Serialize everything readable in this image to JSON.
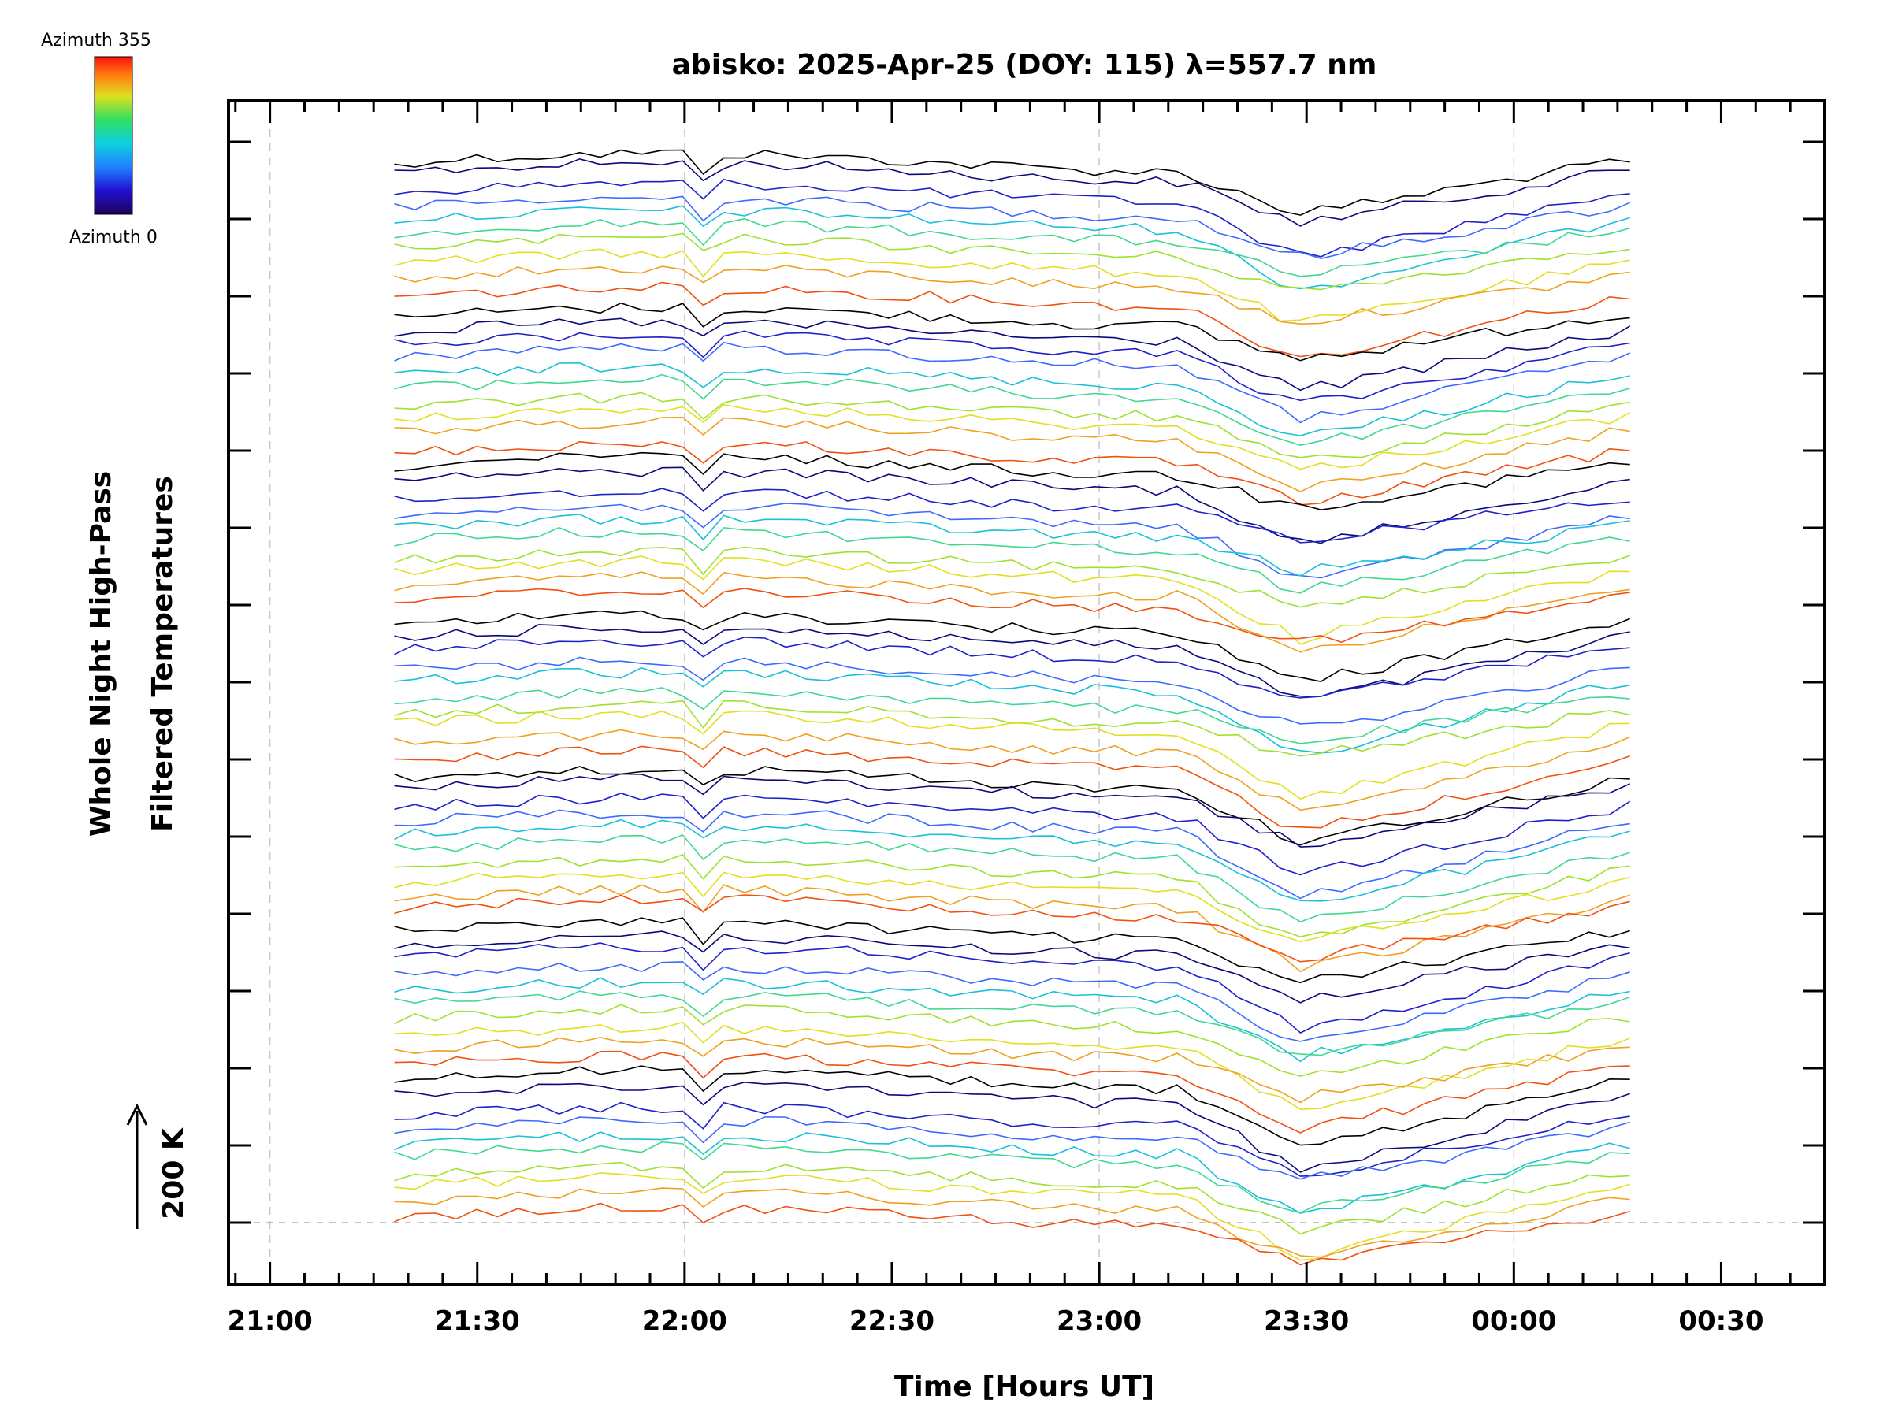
{
  "chart_data": {
    "type": "line",
    "title": "abisko: 2025-Apr-25 (DOY: 115) λ=557.7 nm",
    "xlabel": "Time [Hours UT]",
    "ylabel_line1": "Whole Night High-Pass",
    "ylabel_line2": "Filtered Temperatures",
    "scale_label": "200 K",
    "x_unit": "hours UT since 21:00",
    "xlim": [
      -0.1,
      3.75
    ],
    "x_tick_labels": [
      "21:00",
      "21:30",
      "22:00",
      "22:30",
      "23:00",
      "23:30",
      "00:00",
      "00:30"
    ],
    "x_tick_values": [
      0.0,
      0.5,
      1.0,
      1.5,
      2.0,
      2.5,
      3.0,
      3.5
    ],
    "x_gridlines": [
      0.0,
      1.0,
      2.0,
      3.0
    ],
    "colorbar": {
      "top_label": "Azimuth 355",
      "bottom_label": "Azimuth 0",
      "colormap": "rainbow",
      "range": [
        0,
        355
      ]
    },
    "data_x_range": [
      0.3,
      3.28
    ],
    "event": {
      "description": "sharp temperature drop",
      "start_hour": 2.2,
      "end_hour": 2.48
    },
    "series_groups": 7,
    "series_per_group": 10,
    "series_colors_by_azimuth": [
      "#000000",
      "#0a0a7a",
      "#2020c8",
      "#3c6aff",
      "#18c0d8",
      "#40d890",
      "#a0e030",
      "#e0e020",
      "#f0a020",
      "#f05010"
    ],
    "grid": true
  }
}
